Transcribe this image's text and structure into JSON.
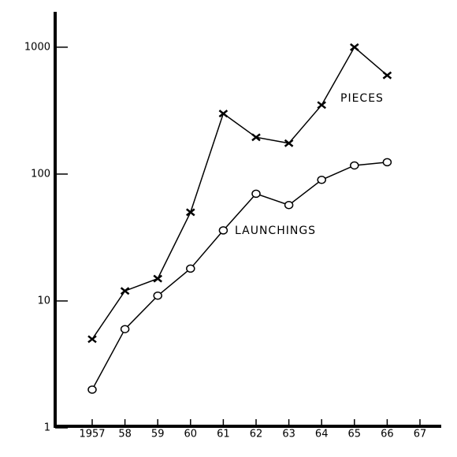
{
  "chart_data": {
    "type": "line",
    "log_scale_y": true,
    "categories": [
      "1957",
      "58",
      "59",
      "60",
      "61",
      "62",
      "63",
      "64",
      "65",
      "66",
      "67"
    ],
    "series": [
      {
        "name": "PIECES",
        "color": "#000000",
        "marker": "x",
        "values": [
          5,
          12,
          15,
          50,
          300,
          195,
          175,
          350,
          1000,
          600,
          null
        ]
      },
      {
        "name": "LAUNCHINGS",
        "color": "#000000",
        "marker": "circle",
        "values": [
          2,
          6,
          11,
          18,
          36,
          70,
          57,
          90,
          117,
          124,
          null
        ]
      }
    ],
    "ylim": [
      1,
      1900
    ],
    "yticks": [
      1,
      10,
      100,
      1000
    ],
    "grid": false
  }
}
